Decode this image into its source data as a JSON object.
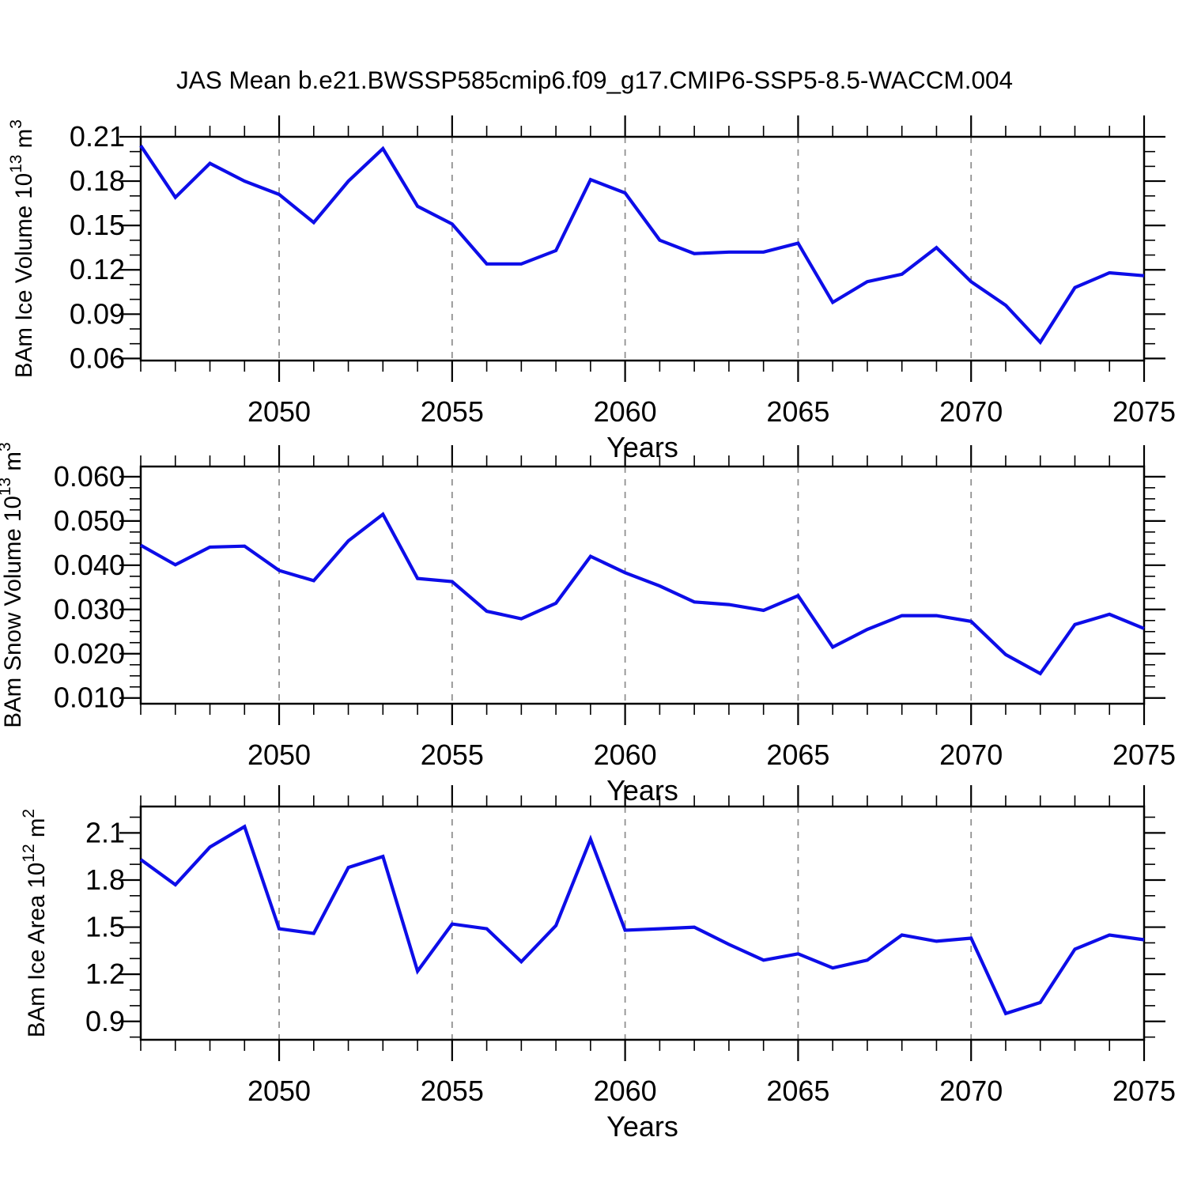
{
  "figure": {
    "title": "JAS Mean b.e21.BWSSP585cmip6.f09_g17.CMIP6-SSP5-8.5-WACCM.004",
    "background_color": "#ffffff",
    "line_color": "#0d0de8",
    "grid_color": "#909090",
    "axis_color": "#000000"
  },
  "chart_data": [
    {
      "type": "line",
      "ylabel": "BAm Ice Volume 10^13 m^3",
      "xlabel": "Years",
      "x": [
        2046,
        2047,
        2048,
        2049,
        2050,
        2051,
        2052,
        2053,
        2054,
        2055,
        2056,
        2057,
        2058,
        2059,
        2060,
        2061,
        2062,
        2063,
        2064,
        2065,
        2066,
        2067,
        2068,
        2069,
        2070,
        2071,
        2072,
        2073,
        2074,
        2075
      ],
      "values": [
        0.204,
        0.169,
        0.192,
        0.18,
        0.171,
        0.152,
        0.18,
        0.202,
        0.163,
        0.151,
        0.124,
        0.124,
        0.133,
        0.181,
        0.172,
        0.14,
        0.131,
        0.132,
        0.132,
        0.138,
        0.098,
        0.112,
        0.117,
        0.135,
        0.112,
        0.096,
        0.071,
        0.108,
        0.118,
        0.116
      ],
      "xlim": [
        2046,
        2075
      ],
      "ylim": [
        0.0586,
        0.21
      ],
      "x_major_ticks": [
        2050,
        2055,
        2060,
        2065,
        2070,
        2075
      ],
      "x_tick_labels": [
        "2050",
        "2055",
        "2060",
        "2065",
        "2070",
        "2075"
      ],
      "x_minor_step": 1,
      "y_major_ticks": [
        0.06,
        0.09,
        0.12,
        0.15,
        0.18,
        0.21
      ],
      "y_tick_labels": [
        "0.06",
        "0.09",
        "0.12",
        "0.15",
        "0.18",
        "0.21"
      ],
      "y_minor_step": 0.01,
      "grid_x": [
        2050,
        2055,
        2060,
        2065,
        2070
      ],
      "grid_style": "vertical-dashed",
      "legend": "none"
    },
    {
      "type": "line",
      "ylabel": "BAm Snow Volume 10^13 m^3",
      "xlabel": "Years",
      "x": [
        2046,
        2047,
        2048,
        2049,
        2050,
        2051,
        2052,
        2053,
        2054,
        2055,
        2056,
        2057,
        2058,
        2059,
        2060,
        2061,
        2062,
        2063,
        2064,
        2065,
        2066,
        2067,
        2068,
        2069,
        2070,
        2071,
        2072,
        2073,
        2074,
        2075
      ],
      "values": [
        0.0445,
        0.0401,
        0.0441,
        0.0443,
        0.0388,
        0.0365,
        0.0455,
        0.0515,
        0.037,
        0.0363,
        0.0296,
        0.0279,
        0.0314,
        0.042,
        0.0383,
        0.0353,
        0.0317,
        0.0311,
        0.0298,
        0.0331,
        0.0215,
        0.0255,
        0.0286,
        0.0286,
        0.0273,
        0.0198,
        0.0155,
        0.0266,
        0.0289,
        0.0257
      ],
      "xlim": [
        2046,
        2075
      ],
      "ylim": [
        0.0087,
        0.0623
      ],
      "x_major_ticks": [
        2050,
        2055,
        2060,
        2065,
        2070,
        2075
      ],
      "x_tick_labels": [
        "2050",
        "2055",
        "2060",
        "2065",
        "2070",
        "2075"
      ],
      "x_minor_step": 1,
      "y_major_ticks": [
        0.01,
        0.02,
        0.03,
        0.04,
        0.05,
        0.06
      ],
      "y_tick_labels": [
        "0.010",
        "0.020",
        "0.030",
        "0.040",
        "0.050",
        "0.060"
      ],
      "y_minor_step": 0.0025,
      "grid_x": [
        2050,
        2055,
        2060,
        2065,
        2070
      ],
      "grid_style": "vertical-dashed",
      "legend": "none"
    },
    {
      "type": "line",
      "ylabel": "BAm Ice Area 10^12 m^2",
      "xlabel": "Years",
      "x": [
        2046,
        2047,
        2048,
        2049,
        2050,
        2051,
        2052,
        2053,
        2054,
        2055,
        2056,
        2057,
        2058,
        2059,
        2060,
        2061,
        2062,
        2063,
        2064,
        2065,
        2066,
        2067,
        2068,
        2069,
        2070,
        2071,
        2072,
        2073,
        2074,
        2075
      ],
      "values": [
        1.93,
        1.77,
        2.01,
        2.14,
        1.49,
        1.46,
        1.88,
        1.95,
        1.22,
        1.52,
        1.49,
        1.28,
        1.51,
        2.06,
        1.48,
        1.49,
        1.5,
        1.39,
        1.29,
        1.33,
        1.24,
        1.29,
        1.45,
        1.41,
        1.43,
        0.95,
        1.02,
        1.36,
        1.45,
        1.42
      ],
      "xlim": [
        2046,
        2075
      ],
      "ylim": [
        0.783,
        2.268
      ],
      "x_major_ticks": [
        2050,
        2055,
        2060,
        2065,
        2070,
        2075
      ],
      "x_tick_labels": [
        "2050",
        "2055",
        "2060",
        "2065",
        "2070",
        "2075"
      ],
      "x_minor_step": 1,
      "y_major_ticks": [
        0.9,
        1.2,
        1.5,
        1.8,
        2.1
      ],
      "y_tick_labels": [
        "0.9",
        "1.2",
        "1.5",
        "1.8",
        "2.1"
      ],
      "y_minor_step": 0.1,
      "grid_x": [
        2050,
        2055,
        2060,
        2065,
        2070
      ],
      "grid_style": "vertical-dashed",
      "legend": "none"
    }
  ]
}
